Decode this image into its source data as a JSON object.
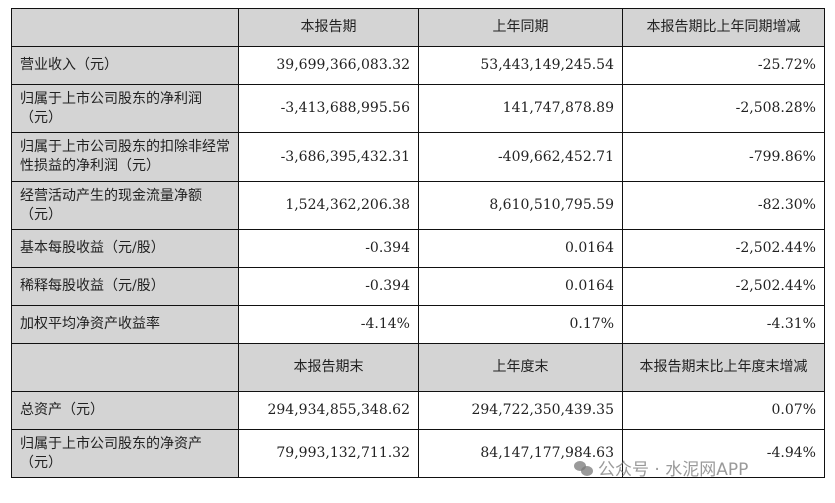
{
  "header1": [
    "",
    "本报告期",
    "上年同期",
    "本报告期比上年同期增减"
  ],
  "rows1": [
    {
      "label": "营业收入（元）",
      "values": [
        "39,699,366,083.32",
        "53,443,149,245.54",
        "-25.72%"
      ]
    },
    {
      "label": "归属于上市公司股东的净利润（元）",
      "values": [
        "-3,413,688,995.56",
        "141,747,878.89",
        "-2,508.28%"
      ]
    },
    {
      "label": "归属于上市公司股东的扣除非经常性损益的净利润（元）",
      "values": [
        "-3,686,395,432.31",
        "-409,662,452.71",
        "-799.86%"
      ]
    },
    {
      "label": "经营活动产生的现金流量净额（元）",
      "values": [
        "1,524,362,206.38",
        "8,610,510,795.59",
        "-82.30%"
      ]
    },
    {
      "label": "基本每股收益（元/股）",
      "values": [
        "-0.394",
        "0.0164",
        "-2,502.44%"
      ]
    },
    {
      "label": "稀释每股收益（元/股）",
      "values": [
        "-0.394",
        "0.0164",
        "-2,502.44%"
      ]
    },
    {
      "label": "加权平均净资产收益率",
      "values": [
        "-4.14%",
        "0.17%",
        "-4.31%"
      ]
    }
  ],
  "header2": [
    "",
    "本报告期末",
    "上年度末",
    "本报告期末比上年度末增减"
  ],
  "rows2": [
    {
      "label": "总资产（元）",
      "values": [
        "294,934,855,348.62",
        "294,722,350,439.35",
        "0.07%"
      ]
    },
    {
      "label": "归属于上市公司股东的净资产（元）",
      "values": [
        "79,993,132,711.32",
        "84,147,177,984.63",
        "-4.94%"
      ]
    }
  ],
  "watermark": "公众号 · 水泥网APP"
}
